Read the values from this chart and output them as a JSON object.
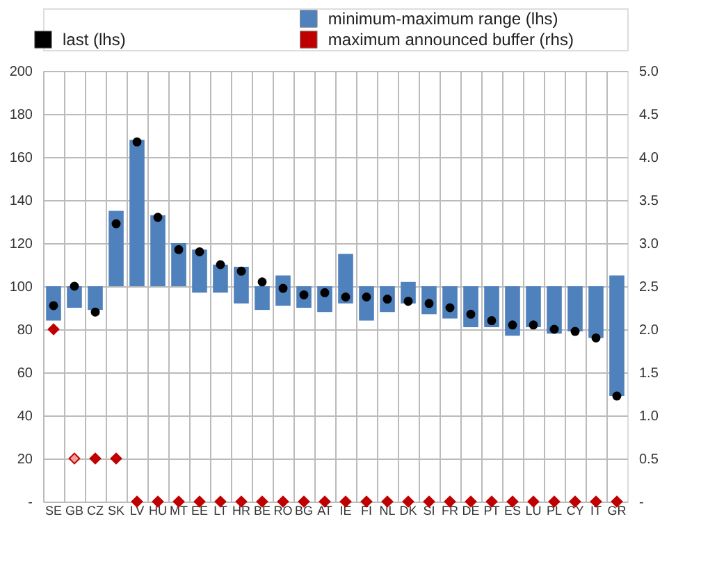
{
  "chart_data": {
    "type": "bar",
    "categories": [
      "SE",
      "GB",
      "CZ",
      "SK",
      "LV",
      "HU",
      "MT",
      "EE",
      "LT",
      "HR",
      "BE",
      "RO",
      "BG",
      "AT",
      "IE",
      "FI",
      "NL",
      "DK",
      "SI",
      "FR",
      "DE",
      "PT",
      "ES",
      "LU",
      "PL",
      "CY",
      "IT",
      "GR"
    ],
    "series": [
      {
        "name": "minimum-maximum range (lhs)",
        "color": "#4f81bd",
        "base": [
          84,
          90,
          89,
          100,
          100,
          100,
          100,
          97,
          97,
          92,
          89,
          91,
          90,
          88,
          92,
          84,
          88,
          92,
          87,
          85,
          81,
          81,
          77,
          81,
          78,
          79,
          76,
          49
        ],
        "values": [
          16,
          10,
          11,
          35,
          68,
          33,
          20,
          20,
          13,
          17,
          11,
          14,
          10,
          12,
          23,
          16,
          12,
          10,
          13,
          15,
          19,
          19,
          23,
          19,
          22,
          21,
          24,
          56
        ]
      },
      {
        "type": "scatter",
        "name": "last (lhs)",
        "color": "#000000",
        "marker": "circle",
        "values": [
          91,
          100,
          88,
          129,
          167,
          132,
          117,
          116,
          110,
          107,
          102,
          99,
          96,
          97,
          95,
          95,
          94,
          93,
          92,
          90,
          87,
          84,
          82,
          82,
          80,
          79,
          76,
          49
        ]
      },
      {
        "type": "scatter",
        "name": "maximum announced buffer (rhs)",
        "color": "#c00000",
        "marker": "diamond",
        "axis": "y2",
        "colors": [
          "#c00000",
          "#f0a0a0",
          "#c00000",
          "#c00000",
          "#c00000",
          "#c00000",
          "#c00000",
          "#c00000",
          "#c00000",
          "#c00000",
          "#c00000",
          "#c00000",
          "#c00000",
          "#c00000",
          "#c00000",
          "#c00000",
          "#c00000",
          "#c00000",
          "#c00000",
          "#c00000",
          "#c00000",
          "#c00000",
          "#c00000",
          "#c00000",
          "#c00000",
          "#c00000",
          "#c00000",
          "#c00000"
        ],
        "values": [
          2,
          0.5,
          0.5,
          0.5,
          0,
          0,
          0,
          0,
          0,
          0,
          0,
          0,
          0,
          0,
          0,
          0,
          0,
          0,
          0,
          0,
          0,
          0,
          0,
          0,
          0,
          0,
          0,
          0
        ]
      }
    ],
    "ylim": [
      0,
      200
    ],
    "yticks": [
      {
        "value": 0,
        "label": "-"
      },
      20,
      40,
      60,
      80,
      100,
      120,
      140,
      160,
      180,
      200
    ],
    "y2lim": [
      0,
      5
    ],
    "y2ticks": [
      {
        "value": 0,
        "label": "-"
      },
      0.5,
      {
        "value": 1,
        "label": "1.0"
      },
      1.5,
      {
        "value": 2,
        "label": "2.0"
      },
      2.5,
      {
        "value": 3,
        "label": "3.0"
      },
      3.5,
      {
        "value": 4,
        "label": "4.0"
      },
      4.5,
      {
        "value": 5,
        "label": "5.0"
      }
    ],
    "grid": true,
    "legend": "top"
  }
}
